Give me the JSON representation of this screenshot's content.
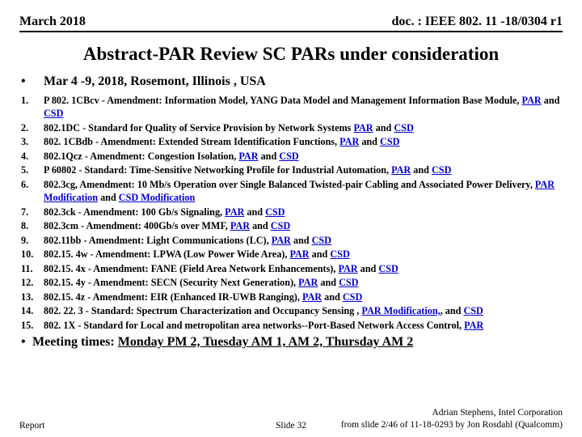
{
  "header": {
    "left": "March 2018",
    "right": "doc. : IEEE 802. 11 -18/0304 r1"
  },
  "title": "Abstract-PAR Review SC PARs under consideration",
  "meeting_info": {
    "marker": "•",
    "text": "Mar 4 -9, 2018, Rosemont, Illinois , USA"
  },
  "items": [
    {
      "pre": "P 802. 1CBcv - Amendment: Information Model, YANG Data Model and Management Information Base Module, ",
      "l1": "PAR",
      "mid": " and ",
      "l2": "CSD"
    },
    {
      "pre": "802.1DC - Standard for Quality of Service Provision by Network Systems ",
      "l1": "PAR",
      "mid": " and ",
      "l2": "CSD"
    },
    {
      "pre": "802. 1CBdb - Amendment: Extended Stream Identification Functions, ",
      "l1": "PAR",
      "mid": " and ",
      "l2": "CSD"
    },
    {
      "pre": "802.1Qcz - Amendment: Congestion Isolation, ",
      "l1": "PAR",
      "mid": " and ",
      "l2": "CSD"
    },
    {
      "pre": "P 60802 - Standard:  Time-Sensitive Networking Profile for Industrial Automation, ",
      "l1": "PAR",
      "mid": " and ",
      "l2": "CSD"
    },
    {
      "pre": "802.3cg, Amendment: 10 Mb/s Operation over Single Balanced Twisted-pair Cabling and Associated Power Delivery, ",
      "l1": "PAR Modification",
      "mid": " and ",
      "l2": "CSD Modification"
    },
    {
      "pre": "802.3ck - Amendment: 100 Gb/s Signaling, ",
      "l1": "PAR",
      "mid": " and ",
      "l2": "CSD"
    },
    {
      "pre": "802.3cm - Amendment: 400Gb/s over MMF, ",
      "l1": "PAR",
      "mid": " and ",
      "l2": "CSD"
    },
    {
      "pre": "802.11bb - Amendment:  Light Communications (LC), ",
      "l1": "PAR",
      "mid": " and ",
      "l2": "CSD"
    },
    {
      "pre": "802.15. 4w - Amendment: LPWA (Low Power  Wide Area), ",
      "l1": "PAR",
      "mid": " and ",
      "l2": "CSD"
    },
    {
      "pre": "802.15. 4x - Amendment: FANE (Field Area Network Enhancements), ",
      "l1": "PAR",
      "mid": " and ",
      "l2": "CSD"
    },
    {
      "pre": "802.15. 4y - Amendment: SECN (Security Next Generation), ",
      "l1": "PAR",
      "mid": " and ",
      "l2": "CSD"
    },
    {
      "pre": "802.15. 4z - Amendment: EIR (Enhanced IR-UWB Ranging), ",
      "l1": "PAR",
      "mid": " and ",
      "l2": "CSD"
    },
    {
      "pre": "802. 22. 3 - Standard: Spectrum Characterization and Occupancy Sensing , ",
      "l1": "PAR Modification,",
      "mid": ", and ",
      "l2": "CSD"
    },
    {
      "pre": "802. 1X - Standard for Local and metropolitan area networks--Port-Based Network Access Control, ",
      "l1": "PAR",
      "mid": "",
      "l2": ""
    }
  ],
  "meeting_times": {
    "marker": "•",
    "prefix": "Meeting times: ",
    "times": "Monday PM 2, Tuesday AM 1, AM 2, Thursday AM 2"
  },
  "footer": {
    "left": "Report",
    "center": "Slide 32",
    "right1": "Adrian Stephens, Intel Corporation",
    "right2": "from slide 2/46 of 11-18-0293 by Jon Rosdahl (Qualcomm)"
  }
}
